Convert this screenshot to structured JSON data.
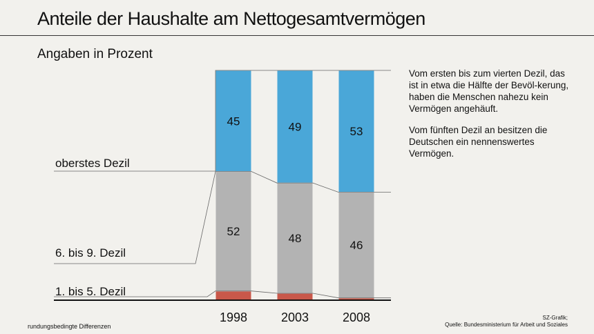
{
  "title": "Anteile der Haushalte am Nettogesamtvermögen",
  "subtitle": "Angaben in Prozent",
  "notes": [
    "Vom ersten bis zum vierten Dezil, das ist in etwa die Hälfte der Bevöl-kerung, haben die Menschen nahezu kein Vermögen angehäuft.",
    "Vom fünften Dezil an besitzen die Deutschen ein nennenswertes Vermögen."
  ],
  "footer_left": "rundungsbedingte Differenzen",
  "footer_right": {
    "credit": "SZ-Grafik;",
    "source": "Quelle: Bundesministerium für Arbeit und Soziales"
  },
  "chart_data": {
    "type": "bar",
    "stacked": true,
    "categories": [
      "1998",
      "2003",
      "2008"
    ],
    "series": [
      {
        "name": "1. bis 5. Dezil",
        "values": [
          4,
          3,
          1
        ],
        "color": "#c9584a"
      },
      {
        "name": "6. bis 9. Dezil",
        "values": [
          52,
          48,
          46
        ],
        "color": "#b3b3b3"
      },
      {
        "name": "oberstes Dezil",
        "values": [
          45,
          49,
          53
        ],
        "color": "#4aa7d8"
      }
    ],
    "ylim": [
      0,
      100
    ],
    "grid": false
  }
}
